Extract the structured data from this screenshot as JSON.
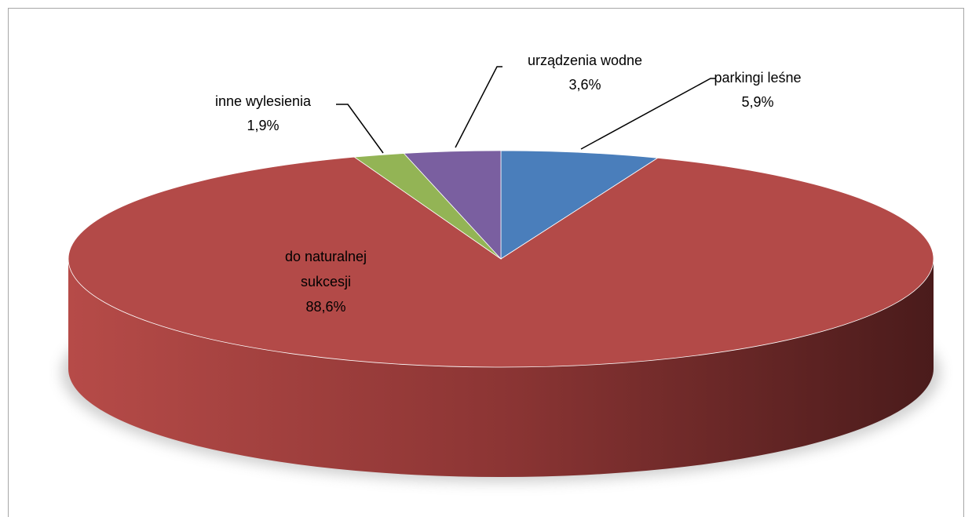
{
  "chart_data": {
    "type": "pie",
    "categories": [
      "parkingi leśne",
      "do naturalnej sukcesji",
      "inne wylesienia",
      "urządzenia wodne"
    ],
    "values": [
      5.9,
      88.6,
      1.9,
      3.6
    ],
    "value_labels": [
      "5,9%",
      "88,6%",
      "1,9%",
      "3,6%"
    ],
    "colors": [
      "#4a7ebb",
      "#b34a48",
      "#93b455",
      "#7a5fa0"
    ]
  }
}
